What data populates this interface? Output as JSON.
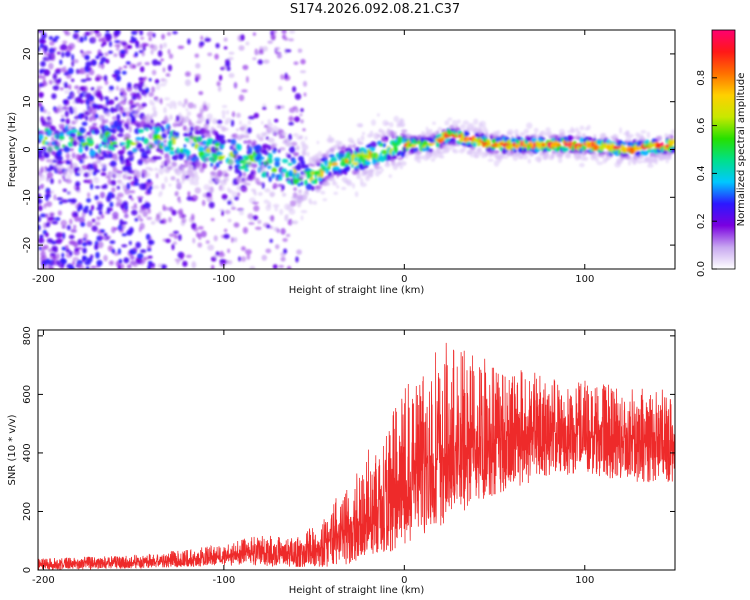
{
  "title": "S174.2026.092.08.21.C37",
  "chart_data": [
    {
      "type": "heatmap",
      "title": "S174.2026.092.08.21.C37",
      "xlabel": "Height of straight line (km)",
      "ylabel": "Frequency (Hz)",
      "xlim": [
        -203,
        150
      ],
      "ylim": [
        -25,
        25
      ],
      "xticks": [
        -200,
        -100,
        0,
        100
      ],
      "yticks": [
        -20,
        -10,
        0,
        10,
        20
      ],
      "colorbar": {
        "label": "Normalized spectral amplitude",
        "range": [
          0,
          1
        ],
        "ticks": [
          "0.0",
          "0.2",
          "0.4",
          "0.6",
          "0.8"
        ],
        "colors": [
          "#ffffff",
          "#c8a8f0",
          "#7a00e0",
          "#2c18ff",
          "#00c8ff",
          "#00e08a",
          "#26e000",
          "#c8e800",
          "#ffd000",
          "#ff7000",
          "#ff1818",
          "#ff0070"
        ]
      },
      "ridge_center_hz": [
        {
          "x": -130,
          "y": 2
        },
        {
          "x": -110,
          "y": 0
        },
        {
          "x": -90,
          "y": -2
        },
        {
          "x": -75,
          "y": -3
        },
        {
          "x": -60,
          "y": -5
        },
        {
          "x": -50,
          "y": -6
        },
        {
          "x": -40,
          "y": -3
        },
        {
          "x": -25,
          "y": -2
        },
        {
          "x": -10,
          "y": 0
        },
        {
          "x": 0,
          "y": 1
        },
        {
          "x": 15,
          "y": 1
        },
        {
          "x": 25,
          "y": 3
        },
        {
          "x": 50,
          "y": 1
        },
        {
          "x": 75,
          "y": 1
        },
        {
          "x": 100,
          "y": 1
        },
        {
          "x": 125,
          "y": 0
        },
        {
          "x": 150,
          "y": 1
        }
      ]
    },
    {
      "type": "line",
      "xlabel": "Height of straight line (km)",
      "ylabel": "SNR (10 * v/v)",
      "xlim": [
        -203,
        150
      ],
      "ylim": [
        0,
        820
      ],
      "xticks": [
        -200,
        -100,
        0,
        100
      ],
      "yticks": [
        0,
        200,
        400,
        600,
        800
      ],
      "color": "#ee2a2a",
      "envelope": [
        {
          "x": -203,
          "low": 0,
          "mean": 20,
          "high": 40
        },
        {
          "x": -150,
          "low": 5,
          "mean": 25,
          "high": 50
        },
        {
          "x": -120,
          "low": 10,
          "mean": 35,
          "high": 70
        },
        {
          "x": -100,
          "low": 15,
          "mean": 50,
          "high": 90
        },
        {
          "x": -80,
          "low": 15,
          "mean": 60,
          "high": 120
        },
        {
          "x": -60,
          "low": 10,
          "mean": 50,
          "high": 110
        },
        {
          "x": -45,
          "low": 10,
          "mean": 80,
          "high": 180
        },
        {
          "x": -30,
          "low": 20,
          "mean": 140,
          "high": 320
        },
        {
          "x": -15,
          "low": 50,
          "mean": 220,
          "high": 460
        },
        {
          "x": 0,
          "low": 80,
          "mean": 300,
          "high": 620
        },
        {
          "x": 20,
          "low": 150,
          "mean": 380,
          "high": 780
        },
        {
          "x": 40,
          "low": 230,
          "mean": 430,
          "high": 760
        },
        {
          "x": 60,
          "low": 280,
          "mean": 460,
          "high": 700
        },
        {
          "x": 80,
          "low": 320,
          "mean": 470,
          "high": 660
        },
        {
          "x": 100,
          "low": 330,
          "mean": 470,
          "high": 650
        },
        {
          "x": 125,
          "low": 300,
          "mean": 450,
          "high": 620
        },
        {
          "x": 150,
          "low": 300,
          "mean": 440,
          "high": 620
        }
      ]
    }
  ]
}
